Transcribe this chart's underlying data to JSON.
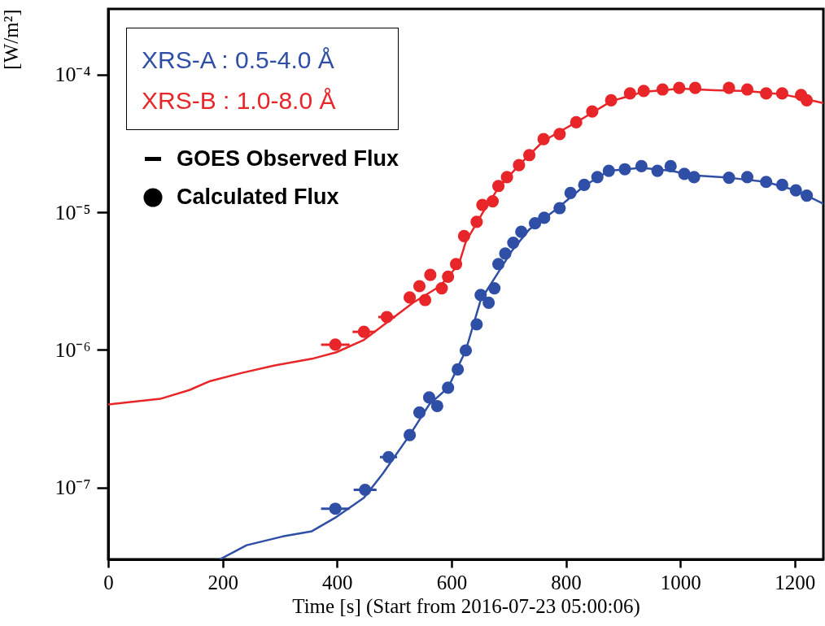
{
  "chart_data": {
    "type": "line",
    "xlabel": "Time [s] (Start from 2016-07-23 05:00:06)",
    "ylabel": "[W/m²]",
    "log": "y",
    "legend": "top left",
    "grid": false,
    "xlim": [
      0,
      1250
    ],
    "xticks": [
      0,
      200,
      400,
      600,
      800,
      1000,
      1200
    ],
    "ylim": [
      3e-08,
      0.0003
    ],
    "yticks": [
      {
        "value": 1e-07,
        "label": "10⁻⁷"
      },
      {
        "value": 1e-06,
        "label": "10⁻⁶"
      },
      {
        "value": 1e-05,
        "label": "10⁻⁵"
      },
      {
        "value": 0.0001,
        "label": "10⁻⁴"
      }
    ],
    "annotations": [
      "GOES Observed Flux",
      "Calculated Flux"
    ],
    "series": [
      {
        "name": "XRS-A : 0.5-4.0 Å",
        "color": "#2f4fa6",
        "x": [
          195,
          242,
          305,
          356,
          399,
          447,
          480,
          527,
          561,
          594,
          625,
          651,
          679,
          705,
          736,
          783,
          832,
          875,
          932,
          983,
          1024,
          1085,
          1150,
          1202,
          1250
        ],
        "values": [
          3e-08,
          3.8e-08,
          4.4e-08,
          4.8e-08,
          6.1e-08,
          8.4e-08,
          1.26e-07,
          2.4e-07,
          4e-07,
          5.3e-07,
          9.9e-07,
          2.3e-06,
          3.5e-06,
          5.2e-06,
          7.5e-06,
          1.05e-05,
          1.55e-05,
          2e-05,
          2.1e-05,
          2e-05,
          1.85e-05,
          1.78e-05,
          1.66e-05,
          1.44e-05,
          1.15e-05
        ]
      },
      {
        "name": "XRS-B : 1.0-8.0 Å",
        "color": "#e8262a",
        "x": [
          0,
          91,
          142,
          177,
          234,
          291,
          356,
          399,
          447,
          480,
          533,
          580,
          613,
          625,
          655,
          682,
          718,
          761,
          818,
          879,
          936,
          1000,
          1060,
          1117,
          1178,
          1221,
          1250
        ],
        "values": [
          4e-07,
          4.4e-07,
          5.1e-07,
          5.9e-07,
          6.8e-07,
          7.7e-07,
          8.6e-07,
          9.6e-07,
          1.18e-06,
          1.5e-06,
          2.2e-06,
          2.9e-06,
          4.2e-06,
          6.1e-06,
          1e-05,
          1.5e-05,
          2.2e-05,
          3.3e-05,
          4.5e-05,
          6.4e-05,
          7.5e-05,
          7.9e-05,
          7.7e-05,
          7.6e-05,
          7.2e-05,
          6.6e-05,
          6.2e-05
        ]
      },
      {
        "type": "scatter",
        "marker": "circle",
        "color": "#2f4fa6",
        "x": [
          397,
          449,
          490,
          527,
          544,
          561,
          575,
          594,
          611,
          625,
          644,
          651,
          665,
          675,
          682,
          694,
          708,
          722,
          746,
          762,
          789,
          808,
          832,
          855,
          875,
          903,
          932,
          960,
          983,
          1007,
          1024,
          1085,
          1117,
          1150,
          1178,
          1202,
          1221
        ],
        "values": [
          7e-08,
          9.6e-08,
          1.66e-07,
          2.4e-07,
          3.5e-07,
          4.5e-07,
          3.9e-07,
          5.3e-07,
          7.2e-07,
          9.9e-07,
          1.53e-06,
          2.5e-06,
          2.2e-06,
          2.8e-06,
          4.2e-06,
          5e-06,
          6e-06,
          7.2e-06,
          8.3e-06,
          9.1e-06,
          1.07e-05,
          1.38e-05,
          1.58e-05,
          1.8e-05,
          2e-05,
          2.05e-05,
          2.16e-05,
          2e-05,
          2.16e-05,
          1.9e-05,
          1.8e-05,
          1.78e-05,
          1.8e-05,
          1.66e-05,
          1.58e-05,
          1.44e-05,
          1.32e-05
        ],
        "xerrors": [
          25,
          20,
          15,
          null,
          null,
          null,
          null,
          null,
          null,
          null,
          null,
          null,
          null,
          null,
          null,
          null,
          null,
          null,
          null,
          null,
          null,
          null,
          null,
          null,
          null,
          null,
          null,
          null,
          null,
          null,
          null,
          null,
          null,
          null,
          null,
          null,
          null
        ]
      },
      {
        "type": "scatter",
        "marker": "circle",
        "color": "#e8262a",
        "x": [
          397,
          447,
          487,
          527,
          544,
          554,
          563,
          583,
          594,
          608,
          622,
          644,
          654,
          672,
          682,
          697,
          718,
          736,
          761,
          789,
          818,
          846,
          879,
          912,
          936,
          969,
          998,
          1026,
          1085,
          1117,
          1150,
          1178,
          1211,
          1221
        ],
        "values": [
          1.09e-06,
          1.35e-06,
          1.73e-06,
          2.4e-06,
          2.9e-06,
          2.3e-06,
          3.5e-06,
          2.8e-06,
          3.4e-06,
          4.2e-06,
          6.7e-06,
          8.5e-06,
          1.13e-05,
          1.2e-05,
          1.55e-05,
          1.8e-05,
          2.2e-05,
          2.6e-05,
          3.4e-05,
          3.7e-05,
          4.5e-05,
          5.4e-05,
          6.5e-05,
          7.3e-05,
          7.6e-05,
          7.8e-05,
          8e-05,
          8e-05,
          8e-05,
          7.8e-05,
          7.3e-05,
          7.3e-05,
          7.1e-05,
          6.5e-05
        ],
        "xerrors": [
          25,
          20,
          15,
          null,
          null,
          null,
          null,
          null,
          null,
          null,
          null,
          null,
          null,
          null,
          null,
          null,
          null,
          null,
          null,
          null,
          null,
          null,
          null,
          null,
          null,
          null,
          null,
          null,
          null,
          null,
          null,
          null,
          null,
          null
        ]
      }
    ]
  }
}
